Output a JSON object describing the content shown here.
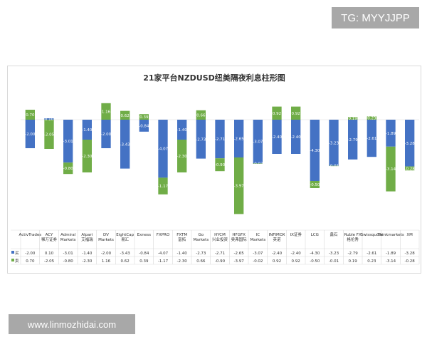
{
  "watermarks": {
    "tg": "TG: MYYJJPP",
    "site": "www.linmozhidai.com"
  },
  "chart_data": {
    "type": "bar",
    "stacked": true,
    "title": "21家平台NZDUSD纽美隔夜利息柱形图",
    "categories": [
      "ActivTrades",
      "ACY 稀万证券",
      "Admiral Markets",
      "Alpari 艾福瑞",
      "DV Markets",
      "EightCap 易汇",
      "Exness",
      "FXPRO",
      "FXTM 富拓",
      "Go Markets",
      "HYCM 兴业投资",
      "HFGFX 奥弗国际",
      "IC Markets",
      "INFIMOX 英诺",
      "IX证券",
      "LCG",
      "鑫石",
      "Ruble FX 格伦秀",
      "Swissquote",
      "Thinkmarkets",
      "XM"
    ],
    "series": [
      {
        "name": "买",
        "color": "#4472c4",
        "values": [
          -2.0,
          0.1,
          -3.01,
          -1.4,
          -2.0,
          -3.43,
          -0.84,
          -4.07,
          -1.4,
          -2.73,
          -2.71,
          -2.65,
          -3.07,
          -2.4,
          -2.4,
          -4.3,
          -3.23,
          -2.79,
          -2.61,
          -1.89,
          -3.28
        ]
      },
      {
        "name": "卖",
        "color": "#70ad47",
        "values": [
          0.7,
          -2.05,
          -0.8,
          -2.3,
          1.16,
          0.62,
          0.39,
          -1.17,
          -2.3,
          0.66,
          -0.9,
          -3.97,
          -0.02,
          0.92,
          0.92,
          -0.5,
          -0.01,
          0.19,
          0.23,
          -3.14,
          -0.28
        ]
      }
    ],
    "ylim": [
      -6.5,
      1.5
    ],
    "grid": false,
    "legend": "table-below"
  }
}
